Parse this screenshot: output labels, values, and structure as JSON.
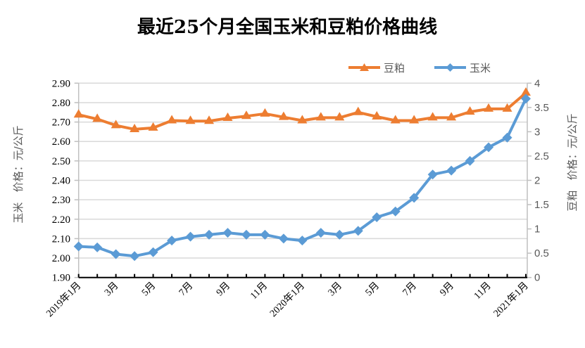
{
  "chart_data": {
    "type": "line",
    "title": "最近25个月全国玉米和豆粕价格曲线",
    "categories": [
      "2019年1月",
      "2月",
      "3月",
      "4月",
      "5月",
      "6月",
      "7月",
      "8月",
      "9月",
      "10月",
      "11月",
      "12月",
      "2020年1月",
      "2月",
      "3月",
      "4月",
      "5月",
      "6月",
      "7月",
      "8月",
      "9月",
      "10月",
      "11月",
      "12月",
      "2021年1月"
    ],
    "x_tick_labels": [
      "2019年1月",
      "3月",
      "5月",
      "7月",
      "9月",
      "11月",
      "2020年1月",
      "3月",
      "5月",
      "7月",
      "9月",
      "11月",
      "2021年1月"
    ],
    "x_tick_label_every": 2,
    "series": [
      {
        "name": "豆粕",
        "axis": "right",
        "color": "#ED7D31",
        "marker": "triangle",
        "values": [
          3.35,
          3.26,
          3.13,
          3.05,
          3.08,
          3.23,
          3.22,
          3.22,
          3.28,
          3.32,
          3.37,
          3.3,
          3.23,
          3.29,
          3.29,
          3.4,
          3.31,
          3.23,
          3.23,
          3.29,
          3.29,
          3.41,
          3.47,
          3.47,
          3.8
        ]
      },
      {
        "name": "玉米",
        "axis": "left",
        "color": "#5B9BD5",
        "marker": "diamond",
        "values": [
          2.06,
          2.055,
          2.02,
          2.01,
          2.03,
          2.09,
          2.11,
          2.12,
          2.13,
          2.12,
          2.12,
          2.1,
          2.09,
          2.13,
          2.12,
          2.14,
          2.21,
          2.24,
          2.31,
          2.43,
          2.45,
          2.5,
          2.57,
          2.62,
          2.82
        ]
      }
    ],
    "y_left": {
      "label": "玉米   价格：元/公斤",
      "ylim": [
        1.9,
        2.9
      ],
      "ticks": [
        "1.90",
        "2.00",
        "2.10",
        "2.20",
        "2.30",
        "2.40",
        "2.50",
        "2.60",
        "2.70",
        "2.80",
        "2.90"
      ]
    },
    "y_right": {
      "label": "豆粕   价格：元/公斤",
      "ylim": [
        0,
        4
      ],
      "ticks": [
        "0",
        "0.5",
        "1",
        "1.5",
        "2",
        "2.5",
        "3",
        "3.5",
        "4"
      ]
    },
    "grid": true,
    "legend": {
      "position": "top-right",
      "entries": [
        "豆粕",
        "玉米"
      ]
    },
    "colors": {
      "grid": "#D9D9D9",
      "axis": "#BFBFBF",
      "baseline": "#000000"
    }
  }
}
